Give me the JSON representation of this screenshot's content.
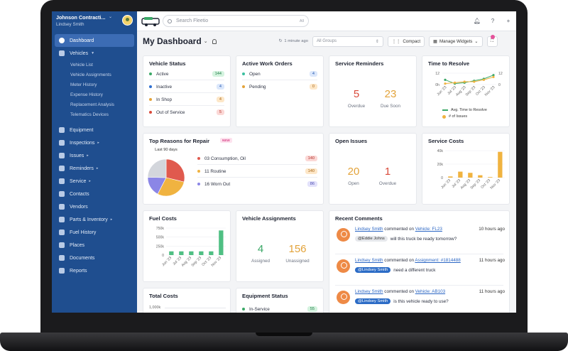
{
  "account": {
    "name": "Johnson Contracti...",
    "user": "Lindsey Smith"
  },
  "sidebar": {
    "items": [
      {
        "label": "Dashboard"
      },
      {
        "label": "Vehicles"
      },
      {
        "label": "Equipment"
      },
      {
        "label": "Inspections"
      },
      {
        "label": "Issues"
      },
      {
        "label": "Reminders"
      },
      {
        "label": "Service"
      },
      {
        "label": "Contacts"
      },
      {
        "label": "Vendors"
      },
      {
        "label": "Parts & Inventory"
      },
      {
        "label": "Fuel History"
      },
      {
        "label": "Places"
      },
      {
        "label": "Documents"
      },
      {
        "label": "Reports"
      }
    ],
    "vehicle_sub": [
      "Vehicle List",
      "Vehicle Assignments",
      "Meter History",
      "Expense History",
      "Replacement Analysis",
      "Telematics Devices"
    ]
  },
  "search": {
    "placeholder": "Search Fleetio",
    "scope": "All"
  },
  "dashboard": {
    "title": "My Dashboard",
    "refresh": "1 minute ago",
    "groups_placeholder": "All Groups",
    "compact": "Compact",
    "manage": "Manage Widgets"
  },
  "vehicle_status": {
    "title": "Vehicle Status",
    "rows": [
      {
        "label": "Active",
        "count": "144",
        "color": "#3ba867",
        "badge": "b-green"
      },
      {
        "label": "Inactive",
        "count": "4",
        "color": "#2f6fd0",
        "badge": "b-blue"
      },
      {
        "label": "In Shop",
        "count": "4",
        "color": "#e3a33a",
        "badge": "b-orange"
      },
      {
        "label": "Out of Service",
        "count": "5",
        "color": "#d94a3a",
        "badge": "b-red"
      }
    ]
  },
  "work_orders": {
    "title": "Active Work Orders",
    "rows": [
      {
        "label": "Open",
        "count": "4",
        "color": "#3bbfa0",
        "badge": "b-blue"
      },
      {
        "label": "Pending",
        "count": "0",
        "color": "#e3a33a",
        "badge": "b-orange"
      }
    ]
  },
  "service_reminders": {
    "title": "Service Reminders",
    "overdue": "5",
    "overdue_label": "Overdue",
    "due_soon": "23",
    "due_soon_label": "Due Soon"
  },
  "time_to_resolve": {
    "title": "Time to Resolve",
    "y_left": [
      "12",
      "0h"
    ],
    "y_right": [
      "12",
      "0"
    ],
    "legend": [
      "Avg. Time to Resolve",
      "# of Issues"
    ]
  },
  "repair_reasons": {
    "title": "Top Reasons for Repair",
    "new_tag": "NEW",
    "center": "Last 90 days",
    "rows": [
      {
        "label": "03 Consumption, Oil",
        "count": "140",
        "color": "#e05a4e",
        "badge": "b-red"
      },
      {
        "label": "11 Routine",
        "count": "140",
        "color": "#f0b340",
        "badge": "b-orange"
      },
      {
        "label": "16 Worn Out",
        "count": "86",
        "color": "#8b86e6",
        "badge": "b-purple"
      }
    ],
    "slices": [
      {
        "value": 140,
        "color": "#e05a4e"
      },
      {
        "value": 140,
        "color": "#f0b340"
      },
      {
        "value": 86,
        "color": "#8b86e6"
      },
      {
        "value": 120,
        "color": "#d3d6dc"
      }
    ]
  },
  "open_issues": {
    "title": "Open Issues",
    "open": "20",
    "open_label": "Open",
    "overdue": "1",
    "overdue_label": "Overdue"
  },
  "service_costs": {
    "title": "Service Costs",
    "y_ticks": [
      "40k",
      "20k",
      "0"
    ]
  },
  "fuel_costs": {
    "title": "Fuel Costs",
    "y_ticks": [
      "750k",
      "500k",
      "250k",
      "0"
    ]
  },
  "vehicle_assignments": {
    "title": "Vehicle Assignments",
    "assigned": "4",
    "assigned_label": "Assigned",
    "unassigned": "156",
    "unassigned_label": "Unassigned"
  },
  "recent_comments": {
    "title": "Recent Comments",
    "items": [
      {
        "user": "Lindsey Smith",
        "verb": "commented on",
        "target": "Vehicle: FL23",
        "time": "10 hours ago",
        "mention": "@Eddie Johns",
        "mention_style": "grey",
        "text": "will this truck be ready tomorrow?"
      },
      {
        "user": "Lindsey Smith",
        "verb": "commented on",
        "target": "Assignment: #1814488",
        "time": "11 hours ago",
        "mention": "@Lindsey Smith",
        "mention_style": "blue",
        "text": "need a different truck"
      },
      {
        "user": "Lindsey Smith",
        "verb": "commented on",
        "target": "Vehicle: AB103",
        "time": "11 hours ago",
        "mention": "@Lindsey Smith",
        "mention_style": "blue",
        "text": "is this vehicle ready to use?"
      }
    ]
  },
  "total_costs": {
    "title": "Total Costs",
    "y_top": "1,000k"
  },
  "equipment_status": {
    "title": "Equipment Status",
    "rows": [
      {
        "label": "In-Service",
        "count": "55",
        "color": "#3ba867",
        "badge": "b-green"
      }
    ]
  },
  "chart_data": [
    {
      "type": "bar",
      "title": "Service Costs",
      "categories": [
        "Jun '23",
        "Jul '23",
        "Aug '23",
        "Sep '23",
        "Oct '23",
        "Nov '23"
      ],
      "values": [
        2000,
        10000,
        8000,
        4000,
        1000,
        43000
      ],
      "ylim": [
        0,
        45000
      ],
      "color": "#f0b340"
    },
    {
      "type": "bar",
      "title": "Fuel Costs",
      "categories": [
        "Jun '23",
        "Jul '23",
        "Aug '23",
        "Sep '23",
        "Oct '23",
        "Nov '23"
      ],
      "values": [
        110000,
        110000,
        110000,
        110000,
        110000,
        730000
      ],
      "ylim": [
        0,
        800000
      ],
      "color": "#4fbf83"
    },
    {
      "type": "line",
      "title": "Time to Resolve",
      "categories": [
        "Jun '23",
        "Jul '23",
        "Aug '23",
        "Sep '23",
        "Oct '23",
        "Nov '23"
      ],
      "series": [
        {
          "name": "Avg. Time to Resolve",
          "values": [
            5,
            1,
            2,
            4,
            6,
            10
          ],
          "color": "#3ba867"
        },
        {
          "name": "# of Issues",
          "values": [
            1,
            2,
            3,
            3,
            5,
            8
          ],
          "color": "#f0b340"
        }
      ],
      "ylim": [
        0,
        12
      ]
    }
  ]
}
